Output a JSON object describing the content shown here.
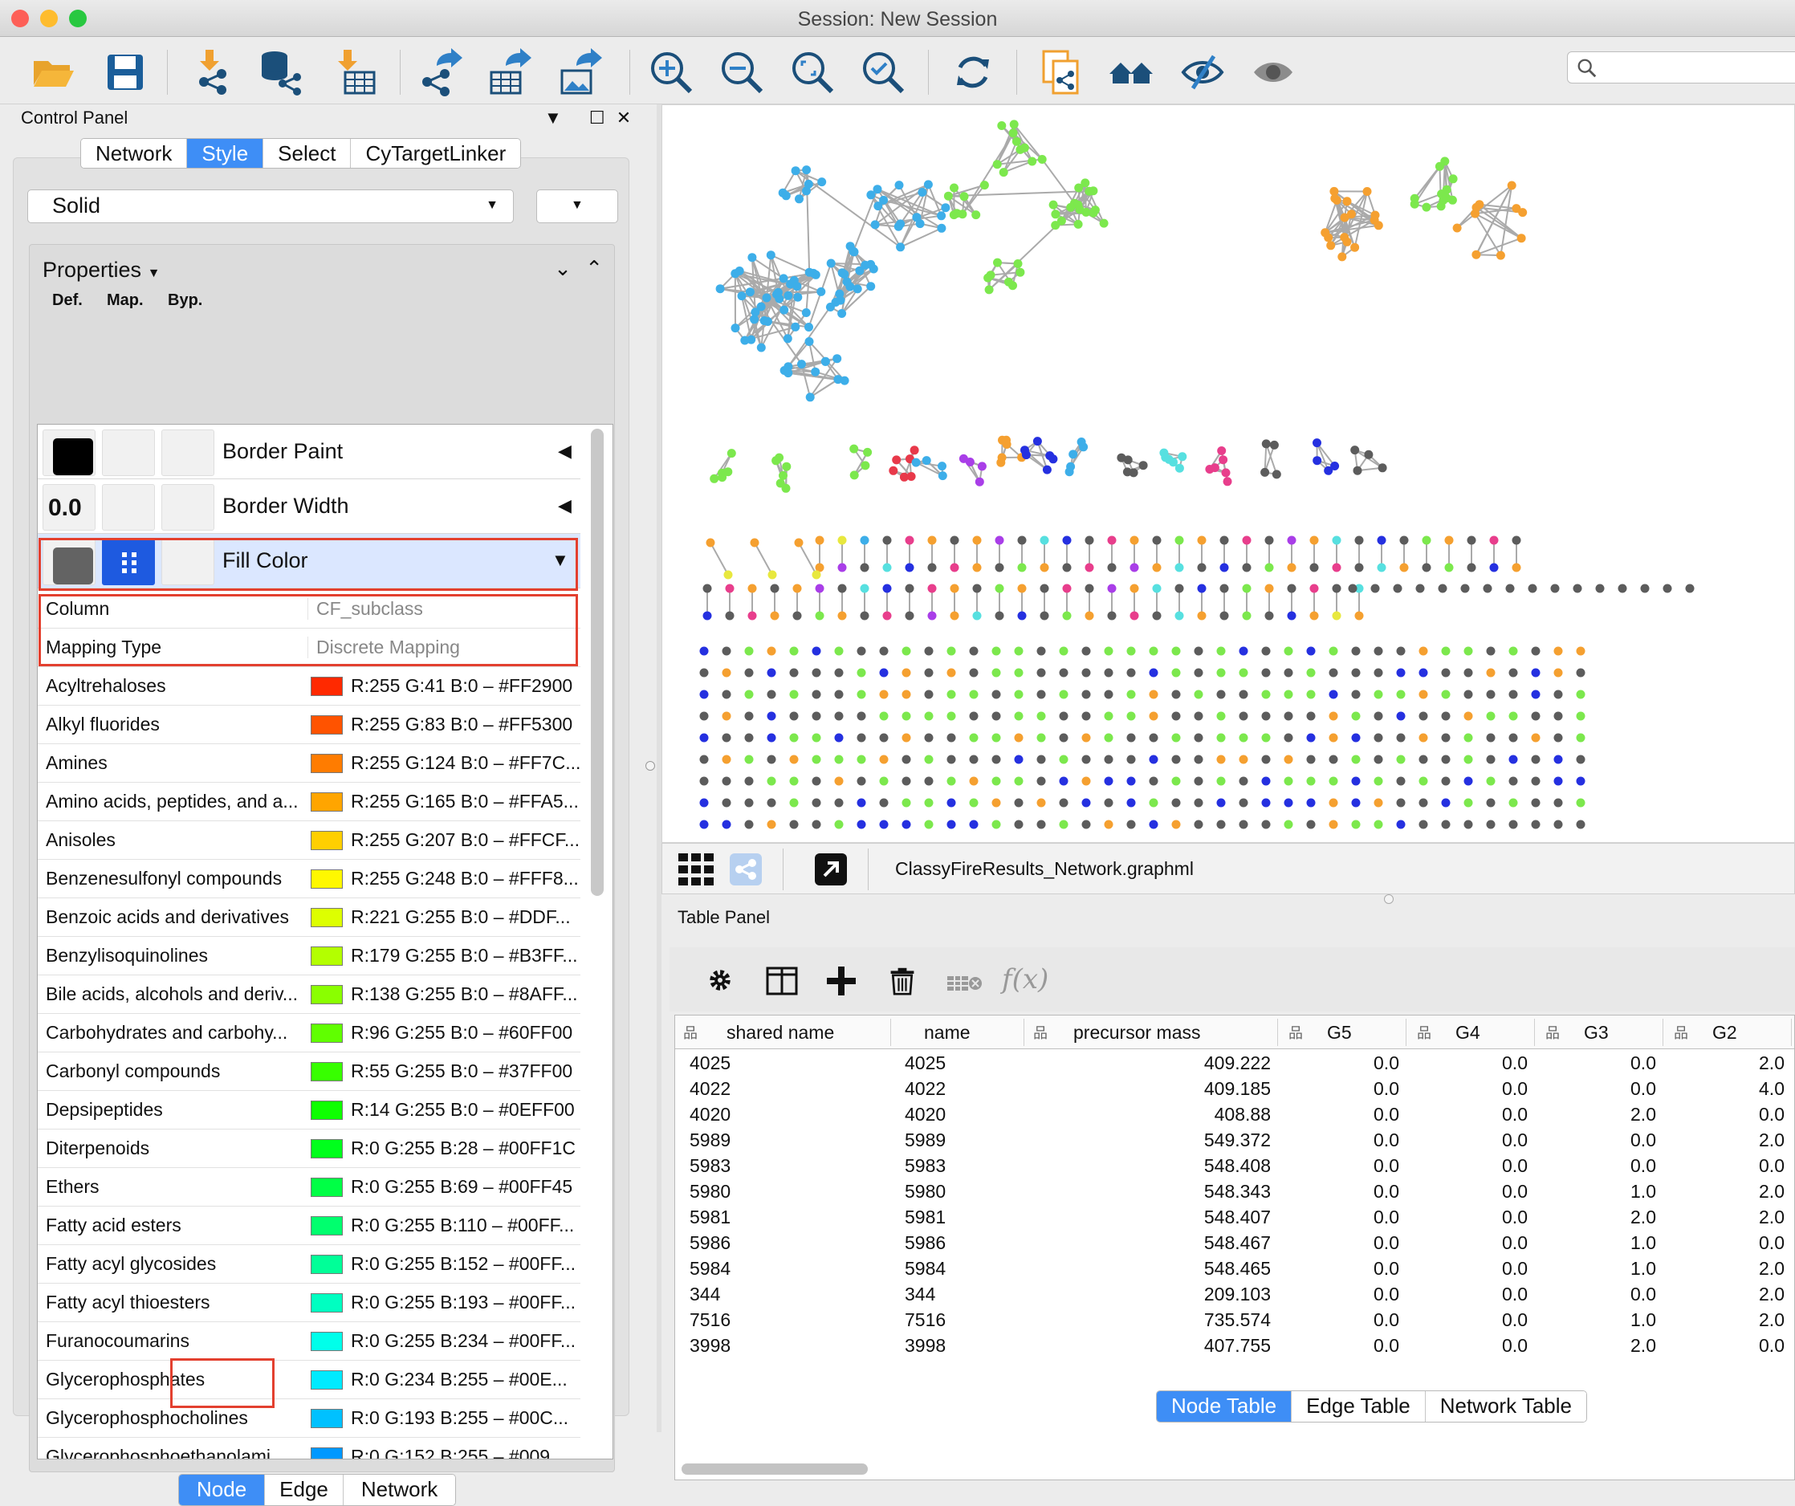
{
  "window": {
    "title": "Session: New Session",
    "traffic_colors": [
      "#fd5f57",
      "#febc2e",
      "#28c840"
    ]
  },
  "toolbar": {
    "icons": [
      "open-session-icon",
      "save-session-icon",
      "import-network-icon",
      "import-network-db-icon",
      "import-table-icon",
      "export-network-icon",
      "export-table-icon",
      "export-image-icon",
      "zoom-in-icon",
      "zoom-out-icon",
      "zoom-fit-icon",
      "zoom-selected-icon",
      "refresh-icon",
      "new-network-from-selection-icon",
      "home-icon",
      "hide-icon",
      "show-icon"
    ],
    "search_placeholder": ""
  },
  "control_panel": {
    "title": "Control Panel",
    "tabs": [
      {
        "label": "Network"
      },
      {
        "label": "Style",
        "selected": true
      },
      {
        "label": "Select"
      },
      {
        "label": "CyTargetLinker"
      }
    ],
    "style_combo": "Solid",
    "properties_label": "Properties",
    "col_headers": [
      "Def.",
      "Map.",
      "Byp."
    ],
    "properties": [
      {
        "name": "Border Paint",
        "default": "",
        "default_color": "#000000"
      },
      {
        "name": "Border Width",
        "default": "0.0"
      },
      {
        "name": "Fill Color",
        "default": "",
        "default_color": "#636363"
      }
    ],
    "column_row": {
      "label": "Column",
      "value": "CF_subclass"
    },
    "mapping_row": {
      "label": "Mapping Type",
      "value": "Discrete Mapping"
    },
    "mappings": [
      {
        "key": "Acyltrehaloses",
        "value": "R:255 G:41 B:0 – #FF2900",
        "color": "#FF2900"
      },
      {
        "key": "Alkyl fluorides",
        "value": "R:255 G:83 B:0 – #FF5300",
        "color": "#FF5300"
      },
      {
        "key": "Amines",
        "value": "R:255 G:124 B:0 – #FF7C...",
        "color": "#FF7C00"
      },
      {
        "key": "Amino acids, peptides, and a...",
        "value": "R:255 G:165 B:0 – #FFA5...",
        "color": "#FFA500"
      },
      {
        "key": "Anisoles",
        "value": "R:255 G:207 B:0 – #FFCF...",
        "color": "#FFCF00"
      },
      {
        "key": "Benzenesulfonyl compounds",
        "value": "R:255 G:248 B:0 – #FFF8...",
        "color": "#FFF800"
      },
      {
        "key": "Benzoic acids and derivatives",
        "value": "R:221 G:255 B:0 – #DDF...",
        "color": "#DDFF00"
      },
      {
        "key": "Benzylisoquinolines",
        "value": "R:179 G:255 B:0 – #B3FF...",
        "color": "#B3FF00"
      },
      {
        "key": "Bile acids, alcohols and deriv...",
        "value": "R:138 G:255 B:0 – #8AFF...",
        "color": "#8AFF00"
      },
      {
        "key": "Carbohydrates and carbohy...",
        "value": "R:96 G:255 B:0 – #60FF00",
        "color": "#60FF00"
      },
      {
        "key": "Carbonyl compounds",
        "value": "R:55 G:255 B:0 – #37FF00",
        "color": "#37FF00"
      },
      {
        "key": "Depsipeptides",
        "value": "R:14 G:255 B:0 – #0EFF00",
        "color": "#0EFF00"
      },
      {
        "key": "Diterpenoids",
        "value": "R:0 G:255 B:28 – #00FF1C",
        "color": "#00FF1C"
      },
      {
        "key": "Ethers",
        "value": "R:0 G:255 B:69 – #00FF45",
        "color": "#00FF45"
      },
      {
        "key": "Fatty acid esters",
        "value": "R:0 G:255 B:110 – #00FF...",
        "color": "#00FF6E"
      },
      {
        "key": "Fatty acyl glycosides",
        "value": "R:0 G:255 B:152 – #00FF...",
        "color": "#00FF98"
      },
      {
        "key": "Fatty acyl thioesters",
        "value": "R:0 G:255 B:193 – #00FF...",
        "color": "#00FFC1"
      },
      {
        "key": "Furanocoumarins",
        "value": "R:0 G:255 B:234 – #00FF...",
        "color": "#00FFEA"
      },
      {
        "key": "Glycerophosphates",
        "value": "R:0 G:234 B:255 – #00E...",
        "color": "#00EAFF"
      },
      {
        "key": "Glycerophosphocholines",
        "value": "R:0 G:193 B:255 – #00C...",
        "color": "#00C1FF"
      },
      {
        "key": "Glycerophosphoethanolami...",
        "value": "R:0 G:152 B:255 – #009...",
        "color": "#0098FF"
      }
    ],
    "bottom_tabs": [
      {
        "label": "Node",
        "selected": true
      },
      {
        "label": "Edge"
      },
      {
        "label": "Network"
      }
    ]
  },
  "network_view": {
    "name": "ClassyFireResults_Network.graphml",
    "palette": {
      "blue": "#3daee9",
      "green": "#7ce84d",
      "orange": "#f5a030",
      "gray": "#5c5c5c",
      "pink": "#e83e8c",
      "red": "#e8394a",
      "purple": "#a93ee8",
      "navy": "#2530e0",
      "cyan": "#57e0e0",
      "yellow": "#e8e83e"
    }
  },
  "table_panel": {
    "title": "Table Panel",
    "columns": [
      "shared name",
      "name",
      "precursor mass",
      "G5",
      "G4",
      "G3",
      "G2"
    ],
    "rows": [
      [
        "4025",
        "4025",
        "409.222",
        "0.0",
        "0.0",
        "0.0",
        "2.0"
      ],
      [
        "4022",
        "4022",
        "409.185",
        "0.0",
        "0.0",
        "0.0",
        "4.0"
      ],
      [
        "4020",
        "4020",
        "408.88",
        "0.0",
        "0.0",
        "2.0",
        "0.0"
      ],
      [
        "5989",
        "5989",
        "549.372",
        "0.0",
        "0.0",
        "0.0",
        "2.0"
      ],
      [
        "5983",
        "5983",
        "548.408",
        "0.0",
        "0.0",
        "0.0",
        "0.0"
      ],
      [
        "5980",
        "5980",
        "548.343",
        "0.0",
        "0.0",
        "1.0",
        "2.0"
      ],
      [
        "5981",
        "5981",
        "548.407",
        "0.0",
        "0.0",
        "2.0",
        "2.0"
      ],
      [
        "5986",
        "5986",
        "548.467",
        "0.0",
        "0.0",
        "1.0",
        "0.0"
      ],
      [
        "5984",
        "5984",
        "548.465",
        "0.0",
        "0.0",
        "1.0",
        "2.0"
      ],
      [
        "344",
        "344",
        "209.103",
        "0.0",
        "0.0",
        "0.0",
        "2.0"
      ],
      [
        "7516",
        "7516",
        "735.574",
        "0.0",
        "0.0",
        "1.0",
        "2.0"
      ],
      [
        "3998",
        "3998",
        "407.755",
        "0.0",
        "0.0",
        "2.0",
        "0.0"
      ]
    ],
    "tabs": [
      {
        "label": "Node Table",
        "selected": true
      },
      {
        "label": "Edge Table"
      },
      {
        "label": "Network Table"
      }
    ]
  }
}
